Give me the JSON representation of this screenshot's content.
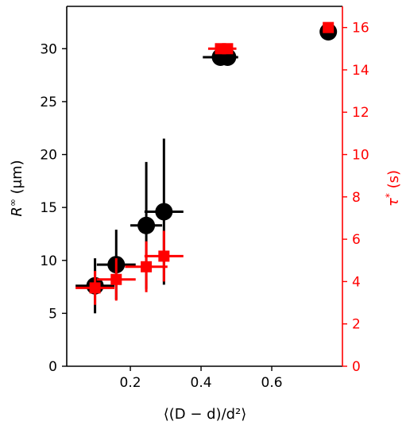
{
  "chart_data": {
    "type": "scatter",
    "xlabel": "⟨(D − d)/d²⟩",
    "ylabel_left": {
      "var": "R",
      "sup": "∞",
      "unit": " (μm)"
    },
    "ylabel_right": {
      "var": "τ",
      "sup": "*",
      "unit": " (s)"
    },
    "xlim": [
      0.02,
      0.8
    ],
    "ylim_left": [
      0,
      34
    ],
    "ylim_right": [
      0,
      17
    ],
    "x_ticks": [
      0.2,
      0.4,
      0.6
    ],
    "x_tick_labels": [
      "0.2",
      "0.4",
      "0.6"
    ],
    "y_left_ticks": [
      0,
      5,
      10,
      15,
      20,
      25,
      30
    ],
    "y_left_tick_labels": [
      "0",
      "5",
      "10",
      "15",
      "20",
      "25",
      "30"
    ],
    "y_right_ticks": [
      0,
      2,
      4,
      6,
      8,
      10,
      12,
      14,
      16
    ],
    "y_right_tick_labels": [
      "0",
      "2",
      "4",
      "6",
      "8",
      "10",
      "12",
      "14",
      "16"
    ],
    "series": [
      {
        "axis": "left",
        "color": "#000000",
        "marker": "circle",
        "points": [
          {
            "x": 0.1,
            "y": 7.6,
            "xerr": 0.055,
            "yerr": 2.6
          },
          {
            "x": 0.16,
            "y": 9.6,
            "xerr": 0.055,
            "yerr": 3.3
          },
          {
            "x": 0.245,
            "y": 13.3,
            "xerr": 0.045,
            "yerr": 6.0
          },
          {
            "x": 0.295,
            "y": 14.6,
            "xerr": 0.055,
            "yerr": 6.9
          },
          {
            "x": 0.455,
            "y": 29.2,
            "xerr": 0.05,
            "yerr": 0
          },
          {
            "x": 0.475,
            "y": 29.2,
            "xerr": 0,
            "yerr": 0
          },
          {
            "x": 0.76,
            "y": 31.6,
            "xerr": 0,
            "yerr": 0
          }
        ]
      },
      {
        "axis": "right",
        "color": "#ff0000",
        "marker": "square",
        "points": [
          {
            "x": 0.1,
            "y": 3.7,
            "xerr": 0.055,
            "yerr": 0.8
          },
          {
            "x": 0.16,
            "y": 4.1,
            "xerr": 0.055,
            "yerr": 1.0
          },
          {
            "x": 0.245,
            "y": 4.7,
            "xerr": 0.06,
            "yerr": 1.2
          },
          {
            "x": 0.295,
            "y": 5.2,
            "xerr": 0.055,
            "yerr": 1.2
          },
          {
            "x": 0.455,
            "y": 15.0,
            "xerr": 0.035,
            "yerr": 0
          },
          {
            "x": 0.475,
            "y": 15.0,
            "xerr": 0.025,
            "yerr": 0
          },
          {
            "x": 0.76,
            "y": 16.0,
            "xerr": 0,
            "yerr": 0
          }
        ]
      }
    ],
    "colors": {
      "left_axis": "#000000",
      "right_axis": "#ff0000"
    },
    "grid": false,
    "legend": "none"
  }
}
